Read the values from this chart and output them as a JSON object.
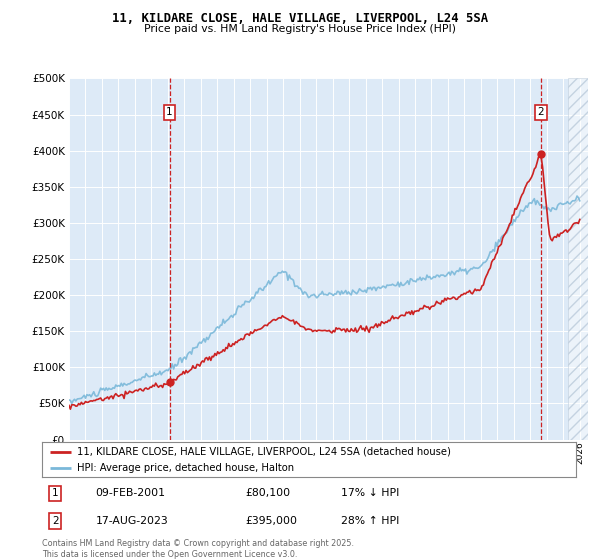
{
  "title1": "11, KILDARE CLOSE, HALE VILLAGE, LIVERPOOL, L24 5SA",
  "title2": "Price paid vs. HM Land Registry's House Price Index (HPI)",
  "legend_line1": "11, KILDARE CLOSE, HALE VILLAGE, LIVERPOOL, L24 5SA (detached house)",
  "legend_line2": "HPI: Average price, detached house, Halton",
  "annotation1_date": "09-FEB-2001",
  "annotation1_price": "£80,100",
  "annotation1_hpi": "17% ↓ HPI",
  "annotation2_date": "17-AUG-2023",
  "annotation2_price": "£395,000",
  "annotation2_hpi": "28% ↑ HPI",
  "copyright": "Contains HM Land Registry data © Crown copyright and database right 2025.\nThis data is licensed under the Open Government Licence v3.0.",
  "hpi_color": "#7ab8d9",
  "price_color": "#cc2222",
  "plot_bg": "#ddeaf7",
  "annotation_box_color": "#cc2222",
  "ylim": [
    0,
    500000
  ],
  "yticks": [
    0,
    50000,
    100000,
    150000,
    200000,
    250000,
    300000,
    350000,
    400000,
    450000,
    500000
  ],
  "xlim_start": 1995.0,
  "xlim_end": 2026.5,
  "ann1_x": 2001.1,
  "ann2_x": 2023.65,
  "ann1_y": 80100,
  "ann2_y": 395000,
  "hatch_start": 2025.3
}
